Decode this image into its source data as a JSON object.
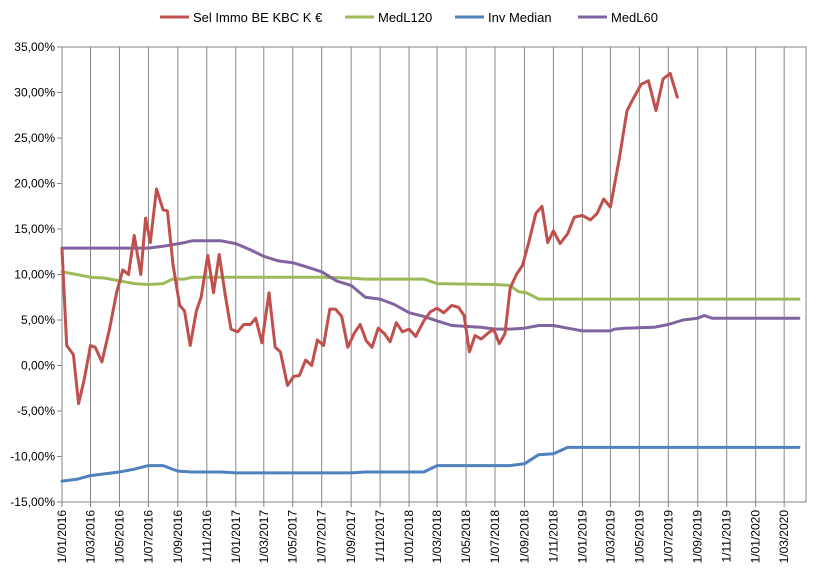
{
  "chart_data": {
    "type": "line",
    "title": "",
    "xlabel": "",
    "ylabel": "",
    "ylim": [
      -0.15,
      0.35
    ],
    "xlim": [
      "2016-01-01",
      "2020-04-01"
    ],
    "y_ticks": [
      "35,00%",
      "30,00%",
      "25,00%",
      "20,00%",
      "15,00%",
      "10,00%",
      "5,00%",
      "0,00%",
      "-5,00%",
      "-10,00%",
      "-15,00%"
    ],
    "x_ticks": [
      "1/01/2016",
      "1/03/2016",
      "1/05/2016",
      "1/07/2016",
      "1/09/2016",
      "1/11/2016",
      "1/01/2017",
      "1/03/2017",
      "1/05/2017",
      "1/07/2017",
      "1/09/2017",
      "1/11/2017",
      "1/01/2018",
      "1/03/2018",
      "1/05/2018",
      "1/07/2018",
      "1/09/2018",
      "1/11/2018",
      "1/01/2019",
      "1/03/2019",
      "1/05/2019",
      "1/07/2019",
      "1/09/2019",
      "1/11/2019",
      "1/01/2020",
      "1/03/2020"
    ],
    "legend_position": "top",
    "grid": "vertical",
    "series": [
      {
        "name": "Sel Immo BE KBC K €",
        "color": "#c0504d",
        "points": [
          [
            "2016-01-01",
            0.128
          ],
          [
            "2016-01-11",
            0.022
          ],
          [
            "2016-01-25",
            0.012
          ],
          [
            "2016-02-05",
            -0.042
          ],
          [
            "2016-02-17",
            -0.015
          ],
          [
            "2016-03-01",
            0.022
          ],
          [
            "2016-03-11",
            0.02
          ],
          [
            "2016-03-25",
            0.004
          ],
          [
            "2016-04-10",
            0.04
          ],
          [
            "2016-04-25",
            0.08
          ],
          [
            "2016-05-08",
            0.105
          ],
          [
            "2016-05-20",
            0.1
          ],
          [
            "2016-06-01",
            0.143
          ],
          [
            "2016-06-15",
            0.1
          ],
          [
            "2016-06-25",
            0.162
          ],
          [
            "2016-07-05",
            0.135
          ],
          [
            "2016-07-18",
            0.194
          ],
          [
            "2016-08-01",
            0.171
          ],
          [
            "2016-08-10",
            0.17
          ],
          [
            "2016-08-22",
            0.11
          ],
          [
            "2016-09-05",
            0.066
          ],
          [
            "2016-09-15",
            0.06
          ],
          [
            "2016-09-27",
            0.022
          ],
          [
            "2016-10-10",
            0.06
          ],
          [
            "2016-10-20",
            0.075
          ],
          [
            "2016-11-03",
            0.121
          ],
          [
            "2016-11-15",
            0.08
          ],
          [
            "2016-11-27",
            0.122
          ],
          [
            "2016-12-10",
            0.077
          ],
          [
            "2016-12-22",
            0.04
          ],
          [
            "2017-01-05",
            0.037
          ],
          [
            "2017-01-18",
            0.045
          ],
          [
            "2017-02-01",
            0.045
          ],
          [
            "2017-02-12",
            0.052
          ],
          [
            "2017-02-25",
            0.025
          ],
          [
            "2017-03-12",
            0.08
          ],
          [
            "2017-03-25",
            0.02
          ],
          [
            "2017-04-05",
            0.015
          ],
          [
            "2017-04-20",
            -0.022
          ],
          [
            "2017-05-03",
            -0.012
          ],
          [
            "2017-05-15",
            -0.011
          ],
          [
            "2017-05-28",
            0.006
          ],
          [
            "2017-06-10",
            0.0
          ],
          [
            "2017-06-22",
            0.028
          ],
          [
            "2017-07-05",
            0.022
          ],
          [
            "2017-07-18",
            0.062
          ],
          [
            "2017-07-30",
            0.062
          ],
          [
            "2017-08-12",
            0.054
          ],
          [
            "2017-08-25",
            0.02
          ],
          [
            "2017-09-08",
            0.036
          ],
          [
            "2017-09-20",
            0.045
          ],
          [
            "2017-10-03",
            0.027
          ],
          [
            "2017-10-15",
            0.02
          ],
          [
            "2017-10-28",
            0.041
          ],
          [
            "2017-11-10",
            0.035
          ],
          [
            "2017-11-22",
            0.026
          ],
          [
            "2017-12-05",
            0.047
          ],
          [
            "2017-12-18",
            0.037
          ],
          [
            "2018-01-01",
            0.04
          ],
          [
            "2018-01-15",
            0.032
          ],
          [
            "2018-02-01",
            0.049
          ],
          [
            "2018-02-15",
            0.059
          ],
          [
            "2018-03-01",
            0.063
          ],
          [
            "2018-03-15",
            0.058
          ],
          [
            "2018-04-01",
            0.066
          ],
          [
            "2018-04-15",
            0.064
          ],
          [
            "2018-04-27",
            0.055
          ],
          [
            "2018-05-08",
            0.015
          ],
          [
            "2018-05-20",
            0.033
          ],
          [
            "2018-06-02",
            0.029
          ],
          [
            "2018-06-15",
            0.035
          ],
          [
            "2018-06-28",
            0.04
          ],
          [
            "2018-07-10",
            0.024
          ],
          [
            "2018-07-22",
            0.035
          ],
          [
            "2018-08-02",
            0.085
          ],
          [
            "2018-08-15",
            0.1
          ],
          [
            "2018-08-28",
            0.11
          ],
          [
            "2018-09-10",
            0.135
          ],
          [
            "2018-09-25",
            0.167
          ],
          [
            "2018-10-08",
            0.175
          ],
          [
            "2018-10-20",
            0.135
          ],
          [
            "2018-11-01",
            0.148
          ],
          [
            "2018-11-15",
            0.134
          ],
          [
            "2018-12-01",
            0.145
          ],
          [
            "2018-12-15",
            0.163
          ],
          [
            "2019-01-01",
            0.165
          ],
          [
            "2019-01-18",
            0.16
          ],
          [
            "2019-02-01",
            0.167
          ],
          [
            "2019-02-15",
            0.183
          ],
          [
            "2019-03-01",
            0.174
          ],
          [
            "2019-03-20",
            0.228
          ],
          [
            "2019-04-05",
            0.28
          ],
          [
            "2019-04-20",
            0.295
          ],
          [
            "2019-05-05",
            0.309
          ],
          [
            "2019-05-20",
            0.313
          ],
          [
            "2019-06-05",
            0.28
          ],
          [
            "2019-06-20",
            0.315
          ],
          [
            "2019-07-05",
            0.321
          ],
          [
            "2019-07-20",
            0.295
          ]
        ]
      },
      {
        "name": "MedL120",
        "color": "#9bbb59",
        "points": [
          [
            "2016-01-01",
            0.103
          ],
          [
            "2016-02-01",
            0.1
          ],
          [
            "2016-03-01",
            0.097
          ],
          [
            "2016-04-01",
            0.096
          ],
          [
            "2016-05-01",
            0.093
          ],
          [
            "2016-06-01",
            0.09
          ],
          [
            "2016-07-01",
            0.089
          ],
          [
            "2016-08-01",
            0.09
          ],
          [
            "2016-08-20",
            0.095
          ],
          [
            "2016-09-15",
            0.095
          ],
          [
            "2016-10-01",
            0.097
          ],
          [
            "2017-07-01",
            0.097
          ],
          [
            "2017-09-01",
            0.096
          ],
          [
            "2017-10-01",
            0.095
          ],
          [
            "2018-02-01",
            0.095
          ],
          [
            "2018-03-01",
            0.09
          ],
          [
            "2018-07-01",
            0.089
          ],
          [
            "2018-08-01",
            0.088
          ],
          [
            "2018-08-20",
            0.081
          ],
          [
            "2018-09-05",
            0.08
          ],
          [
            "2018-10-01",
            0.073
          ],
          [
            "2020-04-01",
            0.073
          ]
        ]
      },
      {
        "name": "Inv Median",
        "color": "#4f81bd",
        "points": [
          [
            "2016-01-01",
            -0.127
          ],
          [
            "2016-02-01",
            -0.125
          ],
          [
            "2016-03-01",
            -0.121
          ],
          [
            "2016-04-01",
            -0.119
          ],
          [
            "2016-05-01",
            -0.117
          ],
          [
            "2016-06-01",
            -0.114
          ],
          [
            "2016-07-01",
            -0.11
          ],
          [
            "2016-08-01",
            -0.11
          ],
          [
            "2016-09-01",
            -0.116
          ],
          [
            "2016-10-01",
            -0.117
          ],
          [
            "2016-12-01",
            -0.117
          ],
          [
            "2017-01-01",
            -0.118
          ],
          [
            "2017-09-01",
            -0.118
          ],
          [
            "2017-10-01",
            -0.117
          ],
          [
            "2018-02-01",
            -0.117
          ],
          [
            "2018-03-01",
            -0.11
          ],
          [
            "2018-08-01",
            -0.11
          ],
          [
            "2018-09-01",
            -0.108
          ],
          [
            "2018-10-01",
            -0.098
          ],
          [
            "2018-11-01",
            -0.097
          ],
          [
            "2018-12-01",
            -0.09
          ],
          [
            "2020-04-01",
            -0.09
          ]
        ]
      },
      {
        "name": "MedL60",
        "color": "#8064a2",
        "points": [
          [
            "2016-01-01",
            0.129
          ],
          [
            "2016-07-01",
            0.129
          ],
          [
            "2016-08-01",
            0.131
          ],
          [
            "2016-09-15",
            0.135
          ],
          [
            "2016-10-01",
            0.137
          ],
          [
            "2016-12-01",
            0.137
          ],
          [
            "2017-01-01",
            0.134
          ],
          [
            "2017-02-01",
            0.127
          ],
          [
            "2017-03-01",
            0.12
          ],
          [
            "2017-04-01",
            0.115
          ],
          [
            "2017-05-01",
            0.113
          ],
          [
            "2017-06-01",
            0.108
          ],
          [
            "2017-07-01",
            0.103
          ],
          [
            "2017-08-01",
            0.093
          ],
          [
            "2017-09-01",
            0.088
          ],
          [
            "2017-10-01",
            0.075
          ],
          [
            "2017-11-01",
            0.073
          ],
          [
            "2017-12-01",
            0.067
          ],
          [
            "2018-01-01",
            0.058
          ],
          [
            "2018-02-01",
            0.054
          ],
          [
            "2018-03-01",
            0.049
          ],
          [
            "2018-04-01",
            0.044
          ],
          [
            "2018-05-01",
            0.043
          ],
          [
            "2018-06-01",
            0.042
          ],
          [
            "2018-07-01",
            0.04
          ],
          [
            "2018-08-01",
            0.04
          ],
          [
            "2018-09-01",
            0.041
          ],
          [
            "2018-10-01",
            0.044
          ],
          [
            "2018-11-01",
            0.044
          ],
          [
            "2018-12-01",
            0.041
          ],
          [
            "2019-01-01",
            0.038
          ],
          [
            "2019-02-01",
            0.038
          ],
          [
            "2019-03-01",
            0.038
          ],
          [
            "2019-03-10",
            0.04
          ],
          [
            "2019-04-01",
            0.041
          ],
          [
            "2019-06-01",
            0.042
          ],
          [
            "2019-07-01",
            0.045
          ],
          [
            "2019-08-01",
            0.05
          ],
          [
            "2019-09-01",
            0.052
          ],
          [
            "2019-09-15",
            0.055
          ],
          [
            "2019-10-01",
            0.052
          ],
          [
            "2020-04-01",
            0.052
          ]
        ]
      }
    ]
  }
}
